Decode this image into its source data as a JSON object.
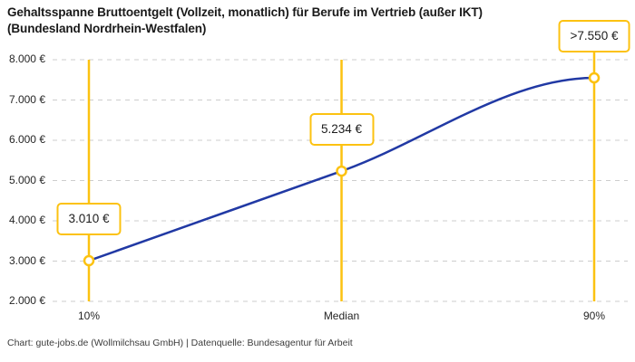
{
  "title": "Gehaltsspanne Bruttoentgelt (Vollzeit, monatlich) für Berufe im Vertrieb (außer IKT)\n(Bundesland Nordrhein-Westfalen)",
  "footer": "Chart: gute-jobs.de (Wollmilchsau GmbH) | Datenquelle: Bundesagentur für Arbeit",
  "colors": {
    "accent_yellow": "#fcc211",
    "line_blue": "#2139a4",
    "grid_gray": "#cdcdcd",
    "title_text": "#191919",
    "axis_text": "#262626",
    "footer_text": "#3c3c3c",
    "box_background": "#ffffff"
  },
  "chart_data": {
    "type": "line",
    "title": "Gehaltsspanne Bruttoentgelt (Vollzeit, monatlich) für Berufe im Vertrieb (außer IKT) (Bundesland Nordrhein-Westfalen)",
    "categories": [
      "10%",
      "Median",
      "90%"
    ],
    "values": [
      3010,
      5234,
      7550
    ],
    "point_labels": [
      "3.010 €",
      "5.234 €",
      ">7.550 €"
    ],
    "y_ticks": [
      2000,
      3000,
      4000,
      5000,
      6000,
      7000,
      8000
    ],
    "y_tick_labels": [
      "2.000 €",
      "3.000 €",
      "4.000 €",
      "5.000 €",
      "6.000 €",
      "7.000 €",
      "8.000 €"
    ],
    "ylim": [
      2000,
      8000
    ],
    "xlabel": "",
    "ylabel": "",
    "grid": "horizontal dashed",
    "legend": "none",
    "notes": "Werte an den Perzentil-Markern beschriftet; 90%-Wert nach oben gedeckelt (>7.550 €)"
  }
}
